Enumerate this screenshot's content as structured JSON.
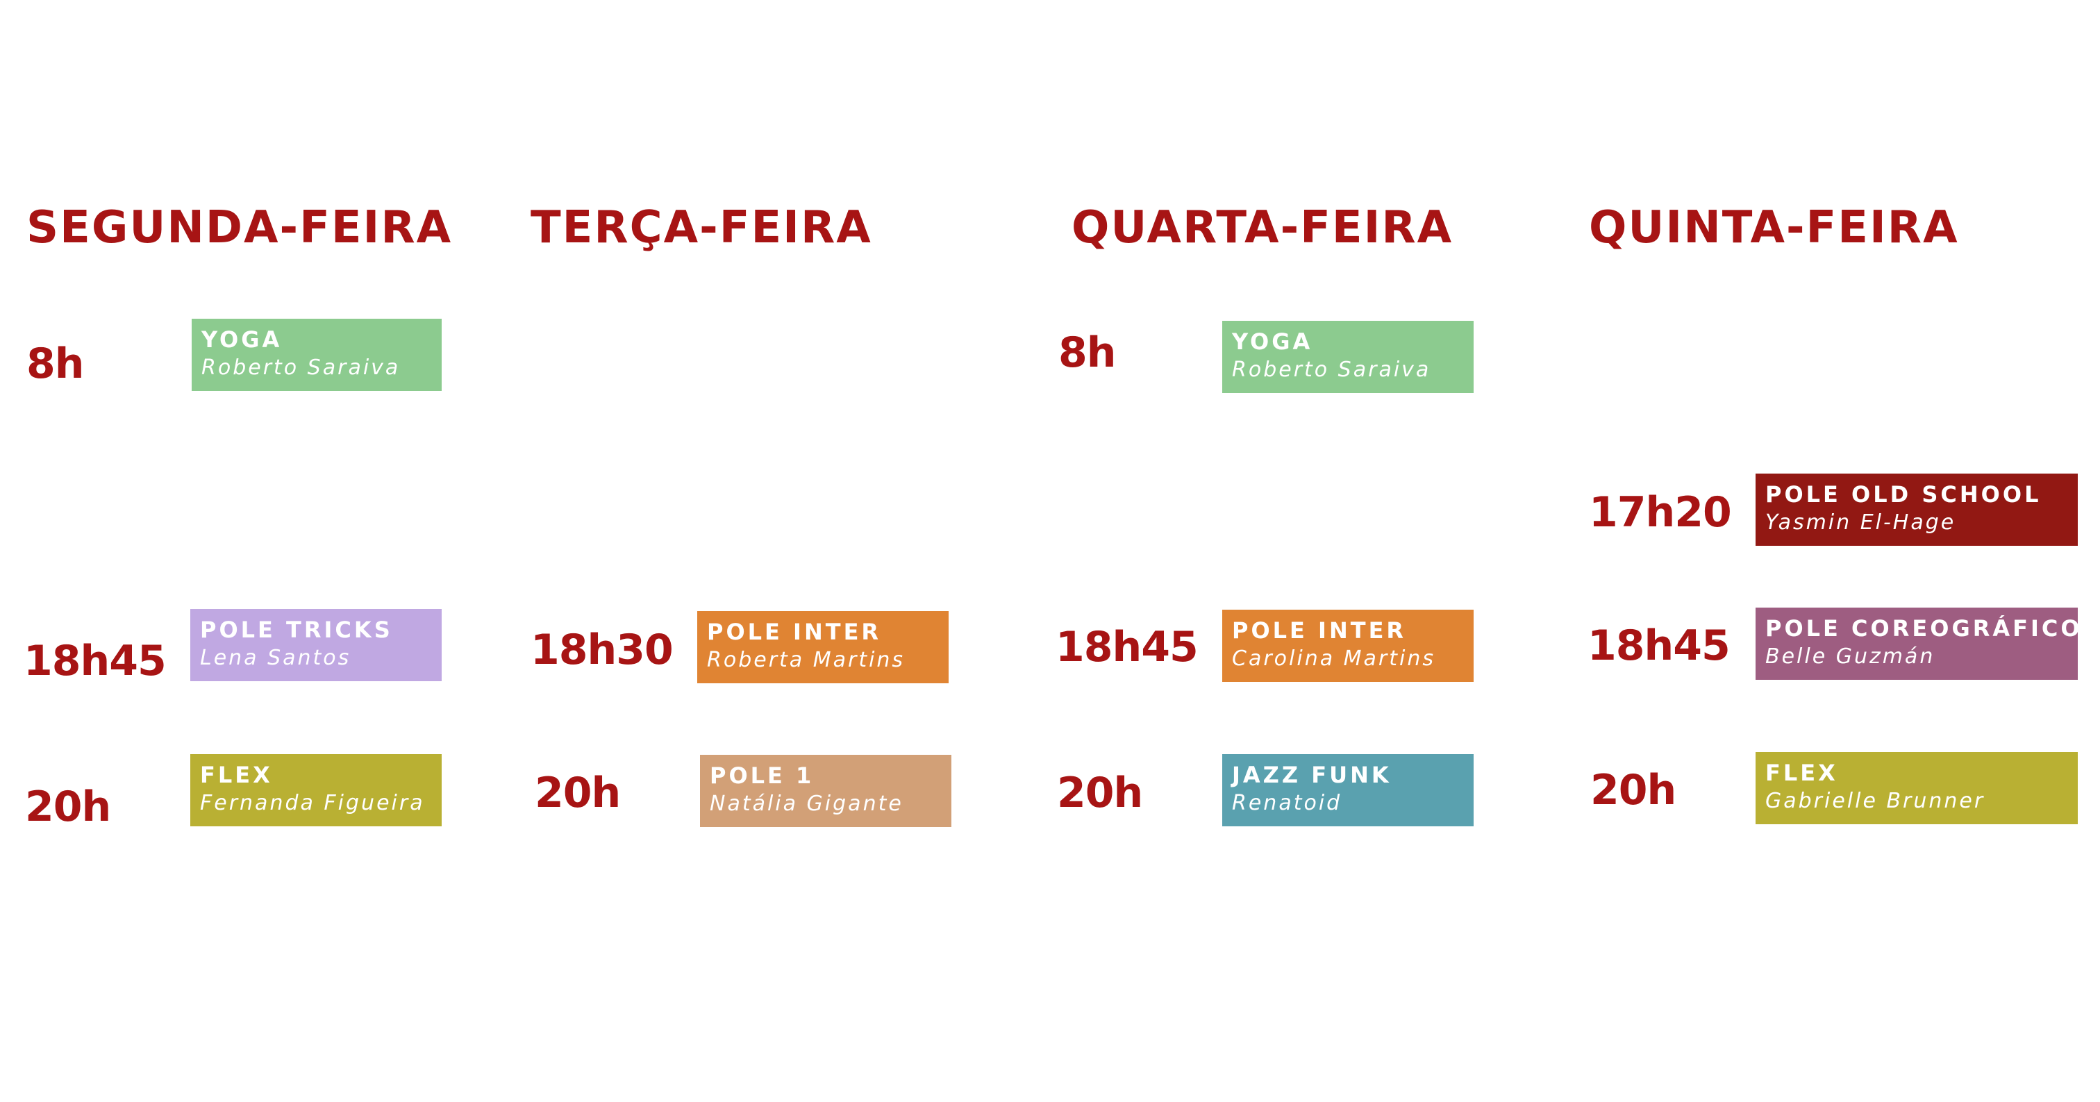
{
  "days": {
    "seg": "SEGUNDA-FEIRA",
    "ter": "TERÇA-FEIRA",
    "qua": "QUARTA-FEIRA",
    "qui": "QUINTA-FEIRA"
  },
  "colors": {
    "heading": "#a71414",
    "yoga": "#8ccb8f",
    "pole_tricks": "#c0a8e2",
    "flex": "#b9b033",
    "pole_inter": "#e08433",
    "pole_1": "#d2a077",
    "jazz_funk": "#5aa1af",
    "pole_old_school": "#921813",
    "pole_coreografico": "#9e5d81"
  },
  "schedule": {
    "seg": [
      {
        "time": "8h",
        "class": "YOGA",
        "teacher": "Roberto Saraiva"
      },
      {
        "time": "18h45",
        "class": "POLE TRICKS",
        "teacher": "Lena Santos"
      },
      {
        "time": "20h",
        "class": "FLEX",
        "teacher": "Fernanda Figueira"
      }
    ],
    "ter": [
      {
        "time": "18h30",
        "class": "POLE INTER",
        "teacher": "Roberta Martins"
      },
      {
        "time": "20h",
        "class": "POLE 1",
        "teacher": "Natália Gigante"
      }
    ],
    "qua": [
      {
        "time": "8h",
        "class": "YOGA",
        "teacher": "Roberto Saraiva"
      },
      {
        "time": "18h45",
        "class": "POLE INTER",
        "teacher": "Carolina Martins"
      },
      {
        "time": "20h",
        "class": "JAZZ FUNK",
        "teacher": "Renatoid"
      }
    ],
    "qui": [
      {
        "time": "17h20",
        "class": "POLE OLD SCHOOL",
        "teacher": "Yasmin El-Hage"
      },
      {
        "time": "18h45",
        "class": "POLE COREOGRÁFICO",
        "teacher": "Belle Guzmán"
      },
      {
        "time": "20h",
        "class": "FLEX",
        "teacher": "Gabrielle Brunner"
      }
    ]
  }
}
